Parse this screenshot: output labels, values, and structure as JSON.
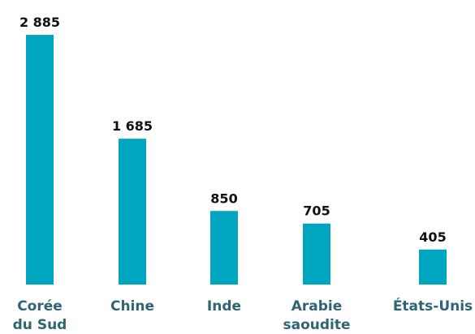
{
  "chart_data": {
    "type": "bar",
    "categories": [
      [
        "Corée",
        "du Sud"
      ],
      [
        "Chine"
      ],
      [
        "Inde"
      ],
      [
        "Arabie",
        "saoudite"
      ],
      [
        "États-Unis"
      ]
    ],
    "values": [
      2885,
      1685,
      850,
      705,
      405
    ],
    "value_labels": [
      "2 885",
      "1 685",
      "850",
      "705",
      "405"
    ],
    "title": "",
    "xlabel": "",
    "ylabel": "",
    "ylim": [
      0,
      2885
    ],
    "grid": false,
    "legend": "none",
    "bar_color": "#00a6bf",
    "value_text_color": "#111111",
    "category_text_color": "#2f6474"
  }
}
